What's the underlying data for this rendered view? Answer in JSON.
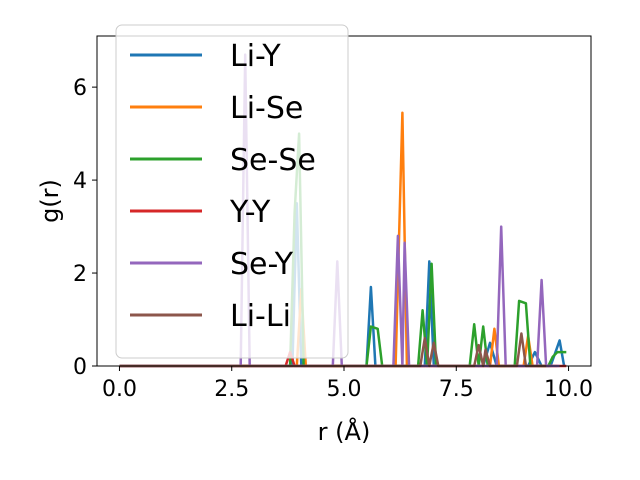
{
  "chart_data": {
    "type": "line",
    "xlabel": "r (Å)",
    "ylabel": "g(r)",
    "xlim": [
      -0.5,
      10.5
    ],
    "ylim": [
      0,
      7.1
    ],
    "xticks": [
      "0.0",
      "2.5",
      "5.0",
      "7.5",
      "10.0"
    ],
    "xtick_values": [
      0,
      2.5,
      5,
      7.5,
      10
    ],
    "yticks": [
      "0",
      "2",
      "4",
      "6"
    ],
    "ytick_values": [
      0,
      2,
      4,
      6
    ],
    "legend_position": "upper-left",
    "grid": false,
    "series": [
      {
        "name": "Li-Y",
        "color": "#1f77b4",
        "points": [
          [
            0,
            0
          ],
          [
            3.85,
            0
          ],
          [
            3.95,
            3.5
          ],
          [
            4.05,
            0
          ],
          [
            5.5,
            0
          ],
          [
            5.6,
            1.7
          ],
          [
            5.7,
            0
          ],
          [
            6.8,
            0
          ],
          [
            6.9,
            2.25
          ],
          [
            7.0,
            0
          ],
          [
            8.1,
            0
          ],
          [
            8.25,
            0.5
          ],
          [
            8.4,
            0
          ],
          [
            9.1,
            0
          ],
          [
            9.25,
            0.3
          ],
          [
            9.4,
            0
          ],
          [
            9.6,
            0
          ],
          [
            9.8,
            0.55
          ],
          [
            9.9,
            0
          ]
        ]
      },
      {
        "name": "Li-Se",
        "color": "#ff7f0e",
        "points": [
          [
            0,
            0
          ],
          [
            3.95,
            0
          ],
          [
            4.05,
            1.65
          ],
          [
            4.15,
            0
          ],
          [
            6.15,
            0
          ],
          [
            6.3,
            5.45
          ],
          [
            6.4,
            0
          ],
          [
            8.25,
            0
          ],
          [
            8.35,
            0.8
          ],
          [
            8.45,
            0
          ],
          [
            9.0,
            0
          ],
          [
            9.1,
            0.65
          ],
          [
            9.2,
            0
          ],
          [
            9.75,
            0
          ]
        ]
      },
      {
        "name": "Se-Se",
        "color": "#2ca02c",
        "points": [
          [
            0,
            0
          ],
          [
            3.8,
            0
          ],
          [
            3.9,
            3.3
          ],
          [
            4.0,
            5.0
          ],
          [
            4.1,
            0
          ],
          [
            5.5,
            0
          ],
          [
            5.6,
            0.85
          ],
          [
            5.75,
            0.8
          ],
          [
            5.85,
            0
          ],
          [
            6.65,
            0
          ],
          [
            6.75,
            1.2
          ],
          [
            6.85,
            0
          ],
          [
            6.95,
            2.2
          ],
          [
            7.05,
            0
          ],
          [
            7.8,
            0
          ],
          [
            7.9,
            0.9
          ],
          [
            8.0,
            0
          ],
          [
            8.1,
            0.85
          ],
          [
            8.2,
            0
          ],
          [
            8.8,
            0
          ],
          [
            8.9,
            1.4
          ],
          [
            9.05,
            1.35
          ],
          [
            9.15,
            0
          ],
          [
            9.55,
            0
          ],
          [
            9.65,
            0.2
          ],
          [
            9.75,
            0.3
          ],
          [
            9.95,
            0.3
          ]
        ]
      },
      {
        "name": "Y-Y",
        "color": "#d62728",
        "points": [
          [
            0,
            0
          ],
          [
            3.7,
            0
          ],
          [
            3.8,
            0.3
          ],
          [
            3.9,
            0
          ],
          [
            9.95,
            0
          ]
        ]
      },
      {
        "name": "Se-Y",
        "color": "#9467bd",
        "points": [
          [
            0,
            0
          ],
          [
            2.7,
            0
          ],
          [
            2.8,
            6.7
          ],
          [
            2.9,
            0
          ],
          [
            4.75,
            0
          ],
          [
            4.85,
            2.25
          ],
          [
            4.95,
            0
          ],
          [
            6.1,
            0
          ],
          [
            6.2,
            2.8
          ],
          [
            6.3,
            0
          ],
          [
            6.35,
            2.65
          ],
          [
            6.45,
            0
          ],
          [
            8.4,
            0
          ],
          [
            8.5,
            3.0
          ],
          [
            8.6,
            0
          ],
          [
            9.3,
            0
          ],
          [
            9.4,
            1.85
          ],
          [
            9.5,
            0
          ],
          [
            9.8,
            0
          ]
        ]
      },
      {
        "name": "Li-Li",
        "color": "#8c564b",
        "points": [
          [
            0,
            0
          ],
          [
            6.7,
            0
          ],
          [
            6.8,
            0.6
          ],
          [
            6.9,
            0
          ],
          [
            7.0,
            0.5
          ],
          [
            7.1,
            0
          ],
          [
            7.9,
            0
          ],
          [
            8.0,
            0.45
          ],
          [
            8.1,
            0
          ],
          [
            8.15,
            0.35
          ],
          [
            8.25,
            0
          ],
          [
            8.85,
            0
          ],
          [
            8.95,
            0.7
          ],
          [
            9.05,
            0
          ],
          [
            9.5,
            0
          ]
        ]
      }
    ]
  }
}
